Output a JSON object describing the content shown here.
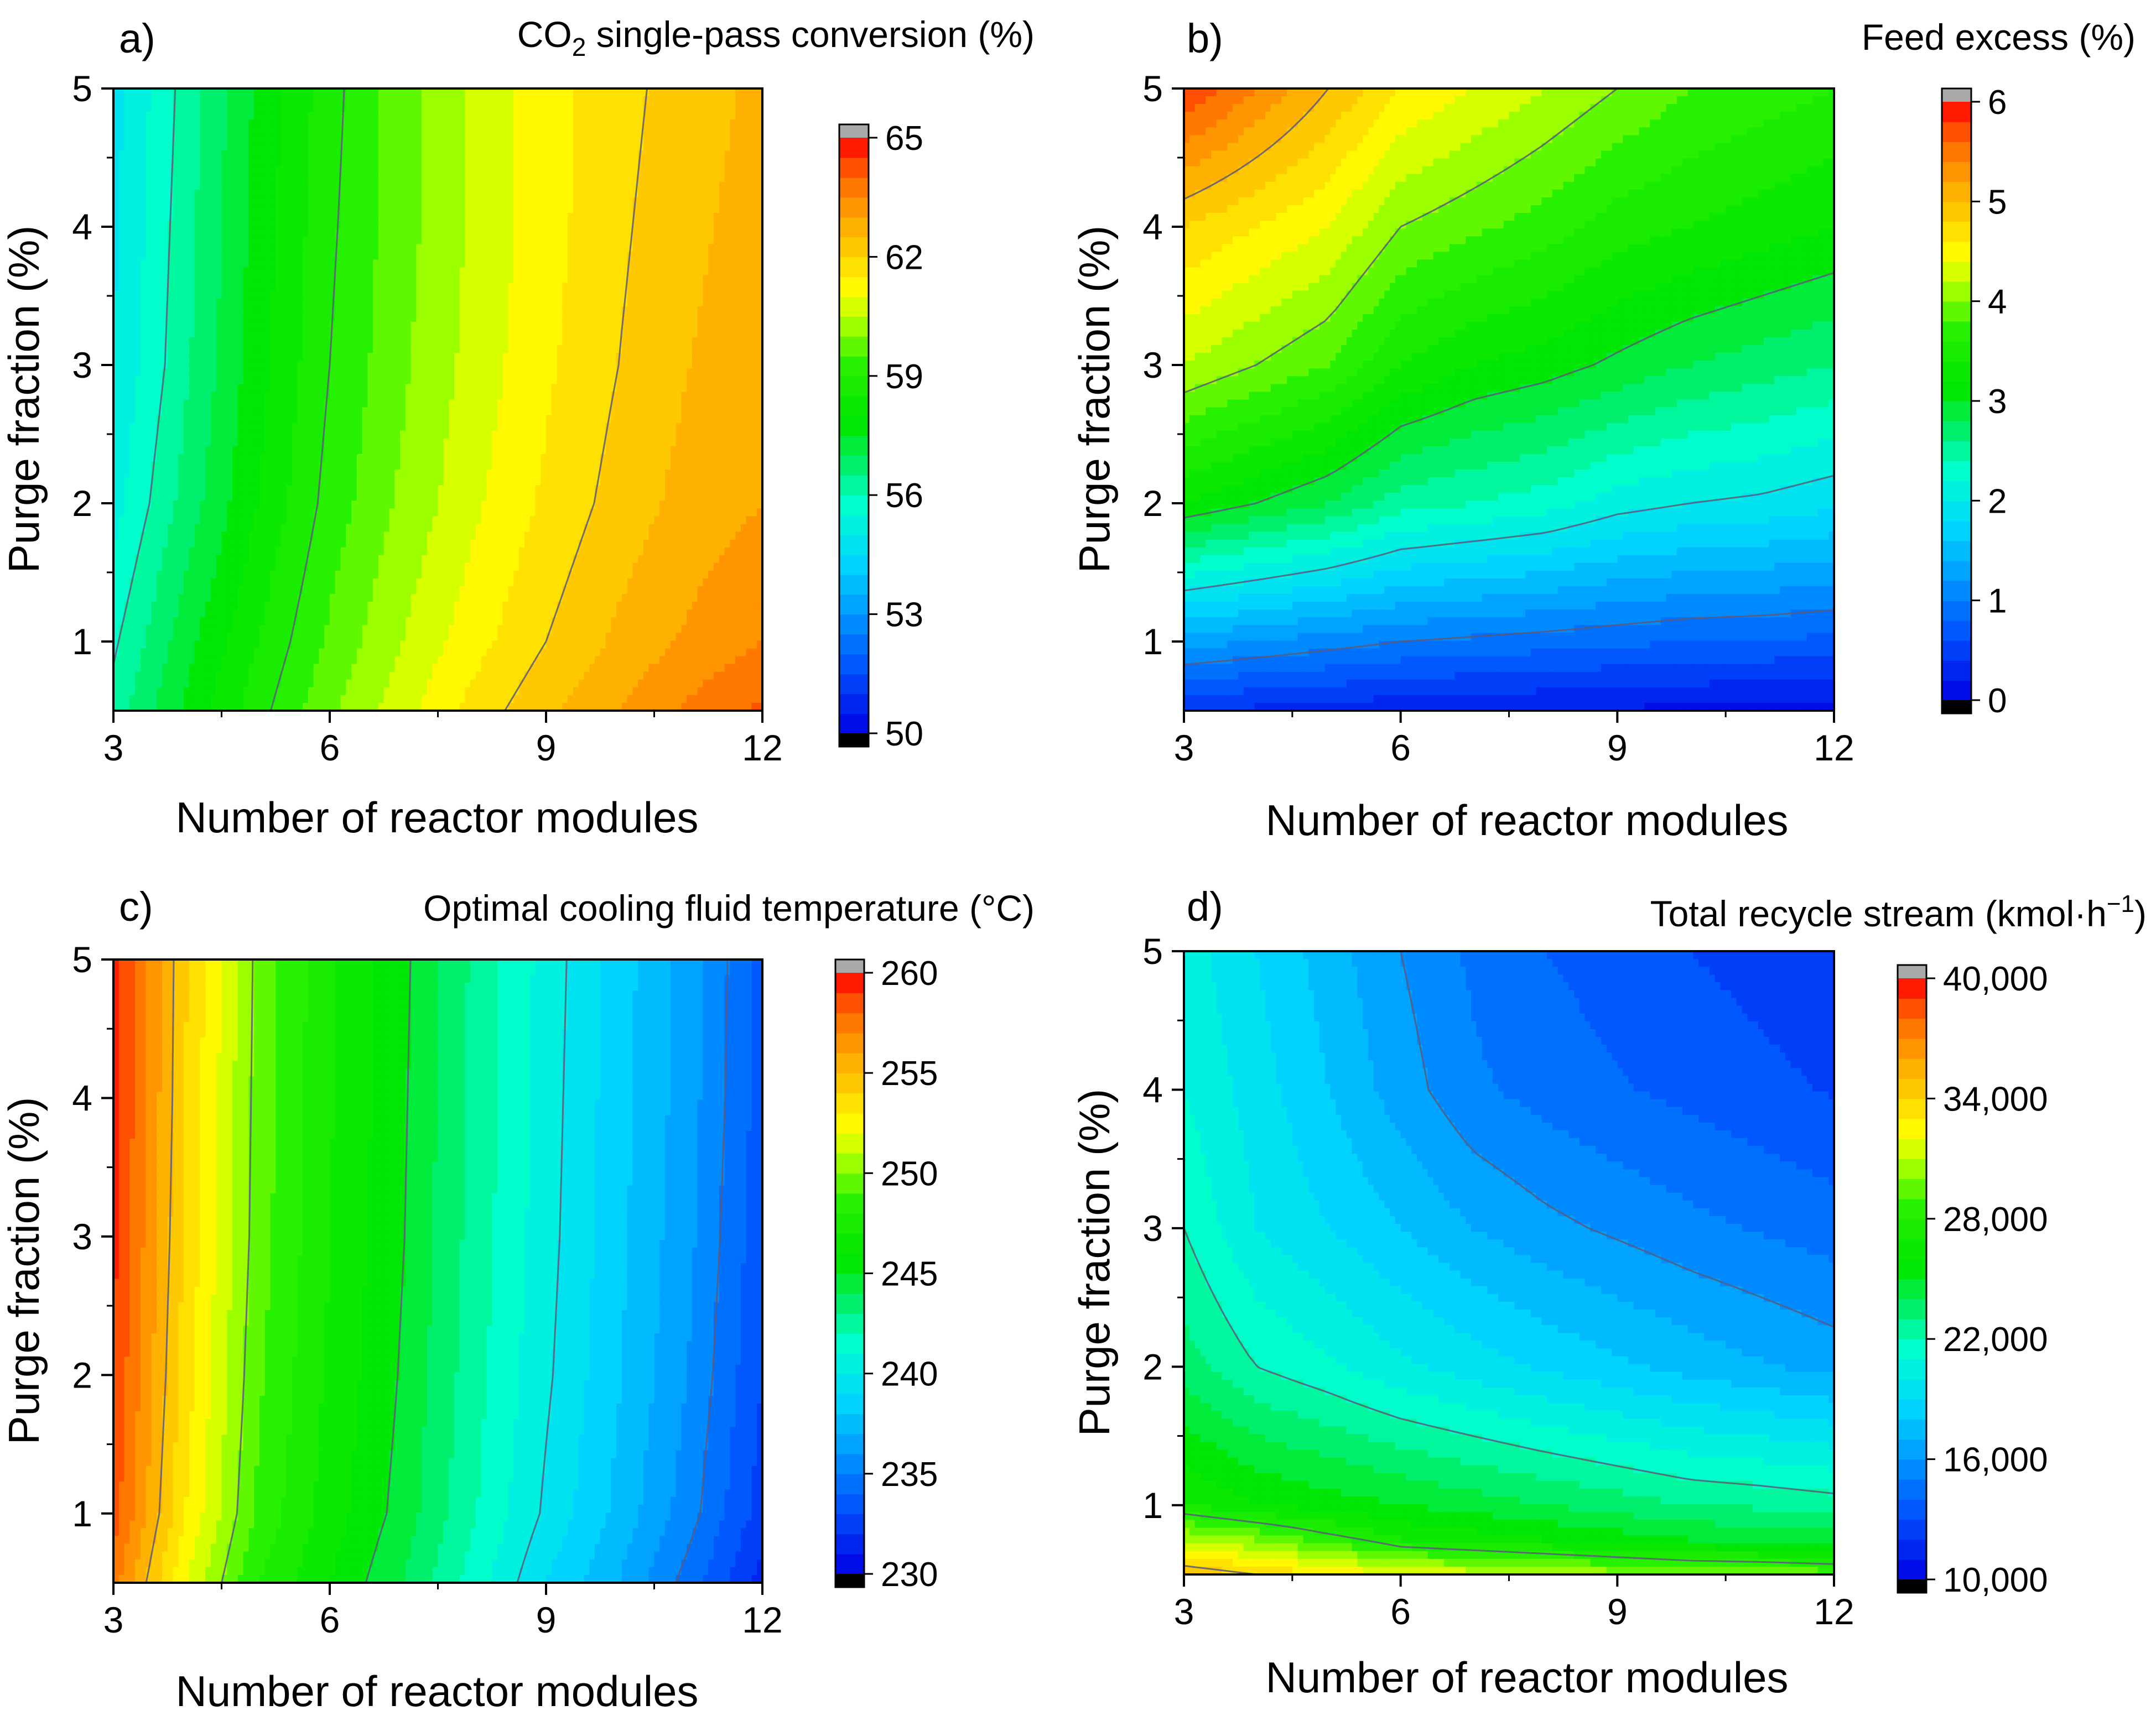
{
  "figure": {
    "description_free": true
  },
  "chart_data": [
    {
      "type": "heatmap",
      "panel": "a)",
      "title": "CO2 single-pass conversion (%)",
      "title_parts": {
        "pre": "CO",
        "sub": "2",
        "post": " single-pass conversion (%)"
      },
      "xlabel": "Number of reactor modules",
      "ylabel": "Purge fraction (%)",
      "xlim": [
        3,
        12
      ],
      "ylim": [
        0.5,
        5
      ],
      "xticks": [
        3,
        6,
        9,
        12
      ],
      "yticks": [
        1,
        2,
        3,
        4,
        5
      ],
      "x": [
        3,
        4,
        5,
        6,
        7,
        8,
        9,
        10,
        11,
        12
      ],
      "y": [
        0.5,
        1,
        2,
        3,
        4,
        5
      ],
      "z": [
        [
          56.2,
          57.6,
          58.8,
          59.9,
          60.8,
          61.7,
          62.4,
          63.0,
          63.6,
          64.1
        ],
        [
          55.9,
          57.3,
          58.5,
          59.6,
          60.5,
          61.3,
          62.0,
          62.6,
          63.1,
          63.5
        ],
        [
          55.3,
          56.7,
          58.0,
          59.2,
          60.1,
          60.9,
          61.6,
          62.2,
          62.7,
          63.0
        ],
        [
          55.0,
          56.4,
          57.8,
          59.0,
          59.9,
          60.7,
          61.4,
          62.0,
          62.5,
          62.8
        ],
        [
          54.9,
          56.3,
          57.7,
          58.9,
          59.8,
          60.6,
          61.3,
          61.9,
          62.4,
          62.7
        ],
        [
          54.8,
          56.2,
          57.6,
          58.8,
          59.8,
          60.6,
          61.3,
          61.8,
          62.3,
          62.6
        ]
      ],
      "colorbar": {
        "min": 50,
        "max": 65,
        "ticks": [
          50,
          53,
          56,
          59,
          62,
          65
        ],
        "tick_labels": [
          "50",
          "53",
          "56",
          "59",
          "62",
          "65"
        ]
      },
      "contour_levels": [
        56,
        59,
        62
      ]
    },
    {
      "type": "heatmap",
      "panel": "b)",
      "title": "Feed excess (%)",
      "xlabel": "Number of reactor modules",
      "ylabel": "Purge fraction (%)",
      "xlim": [
        3,
        12
      ],
      "ylim": [
        0.5,
        5
      ],
      "xticks": [
        3,
        6,
        9,
        12
      ],
      "yticks": [
        1,
        2,
        3,
        4,
        5
      ],
      "x": [
        3,
        4,
        5,
        6,
        7,
        8,
        9,
        10,
        11,
        12
      ],
      "y": [
        0.5,
        1,
        2,
        3,
        4,
        5
      ],
      "z": [
        [
          0.4,
          0.35,
          0.3,
          0.25,
          0.22,
          0.2,
          0.17,
          0.15,
          0.13,
          0.1
        ],
        [
          1.3,
          1.2,
          1.1,
          1.0,
          0.95,
          0.9,
          0.85,
          0.8,
          0.78,
          0.75
        ],
        [
          3.2,
          3.0,
          2.8,
          2.5,
          2.4,
          2.3,
          2.1,
          2.0,
          1.95,
          1.85
        ],
        [
          4.2,
          4.0,
          3.8,
          3.4,
          3.2,
          3.1,
          2.95,
          2.8,
          2.7,
          2.6
        ],
        [
          4.8,
          4.6,
          4.4,
          4.0,
          3.85,
          3.7,
          3.5,
          3.4,
          3.3,
          3.2
        ],
        [
          5.8,
          5.4,
          5.0,
          4.6,
          4.4,
          4.2,
          4.0,
          3.8,
          3.7,
          3.6
        ]
      ],
      "colorbar": {
        "min": 0,
        "max": 6,
        "ticks": [
          0,
          1,
          2,
          3,
          4,
          5,
          6
        ],
        "tick_labels": [
          "0",
          "1",
          "2",
          "3",
          "4",
          "5",
          "6"
        ]
      },
      "contour_levels": [
        1,
        2,
        3,
        4,
        5
      ]
    },
    {
      "type": "heatmap",
      "panel": "c)",
      "title": "Optimal cooling fluid temperature (°C)",
      "xlabel": "Number of reactor modules",
      "ylabel": "Purge fraction (%)",
      "xlim": [
        3,
        12
      ],
      "ylim": [
        0.5,
        5
      ],
      "xticks": [
        3,
        6,
        9,
        12
      ],
      "yticks": [
        1,
        2,
        3,
        4,
        5
      ],
      "x": [
        3,
        4,
        5,
        6,
        7,
        8,
        9,
        10,
        11,
        12
      ],
      "y": [
        0.5,
        1,
        2,
        3,
        4,
        5
      ],
      "z": [
        [
          257.5,
          252.0,
          248.0,
          246.0,
          244.0,
          241.5,
          239.0,
          237.0,
          234.5,
          231.5
        ],
        [
          258.5,
          253.0,
          248.8,
          246.5,
          244.6,
          242.1,
          239.8,
          237.7,
          235.4,
          232.5
        ],
        [
          259.0,
          253.5,
          249.2,
          246.8,
          244.9,
          242.4,
          240.2,
          238.1,
          235.9,
          233.0
        ],
        [
          259.3,
          253.8,
          249.5,
          247.0,
          245.1,
          242.6,
          240.4,
          238.3,
          236.2,
          233.3
        ],
        [
          259.5,
          254.0,
          249.6,
          247.1,
          245.2,
          242.7,
          240.5,
          238.4,
          236.4,
          233.5
        ],
        [
          259.6,
          254.1,
          249.7,
          247.2,
          245.3,
          242.8,
          240.6,
          238.5,
          236.5,
          233.6
        ]
      ],
      "colorbar": {
        "min": 230,
        "max": 260,
        "ticks": [
          230,
          235,
          240,
          245,
          250,
          255,
          260
        ],
        "tick_labels": [
          "230",
          "235",
          "240",
          "245",
          "250",
          "255",
          "260"
        ]
      },
      "contour_levels": [
        235,
        240,
        245,
        250,
        255
      ]
    },
    {
      "type": "heatmap",
      "panel": "d)",
      "title": "Total recycle stream (kmol·h−1)",
      "title_parts": {
        "pre": "Total recycle stream (kmol·h",
        "sup": "−1",
        "post": ")"
      },
      "xlabel": "Number of reactor modules",
      "ylabel": "Purge fraction (%)",
      "xlim": [
        3,
        12
      ],
      "ylim": [
        0.5,
        5
      ],
      "xticks": [
        3,
        6,
        9,
        12
      ],
      "yticks": [
        1,
        2,
        3,
        4,
        5
      ],
      "x": [
        3,
        4,
        5,
        6,
        7,
        8,
        9,
        10,
        11,
        12
      ],
      "y": [
        0.5,
        0.75,
        1,
        2,
        3,
        4,
        5
      ],
      "z": [
        [
          35000,
          34000,
          33000,
          32000,
          31500,
          31000,
          30500,
          30000,
          29800,
          29500
        ],
        [
          31000,
          30000,
          28500,
          27000,
          26500,
          26000,
          25500,
          25000,
          24800,
          24500
        ],
        [
          27000,
          26000,
          25500,
          25000,
          24500,
          24000,
          23500,
          23000,
          22800,
          22500
        ],
        [
          23500,
          22000,
          21200,
          20200,
          19500,
          18800,
          18200,
          17600,
          17100,
          16600
        ],
        [
          22000,
          20000,
          19000,
          18000,
          17000,
          16300,
          15800,
          15300,
          14900,
          14500
        ],
        [
          21000,
          19500,
          18000,
          16500,
          15200,
          14600,
          14100,
          13700,
          13300,
          12900
        ],
        [
          20500,
          19000,
          17500,
          16000,
          14800,
          14000,
          13500,
          13000,
          12600,
          12200
        ]
      ],
      "colorbar": {
        "min": 10000,
        "max": 40000,
        "ticks": [
          10000,
          16000,
          22000,
          28000,
          34000,
          40000
        ],
        "tick_labels": [
          "10,000",
          "16,000",
          "22,000",
          "28,000",
          "34,000",
          "40,000"
        ]
      },
      "contour_levels": [
        16000,
        22000,
        28000,
        34000
      ]
    }
  ]
}
